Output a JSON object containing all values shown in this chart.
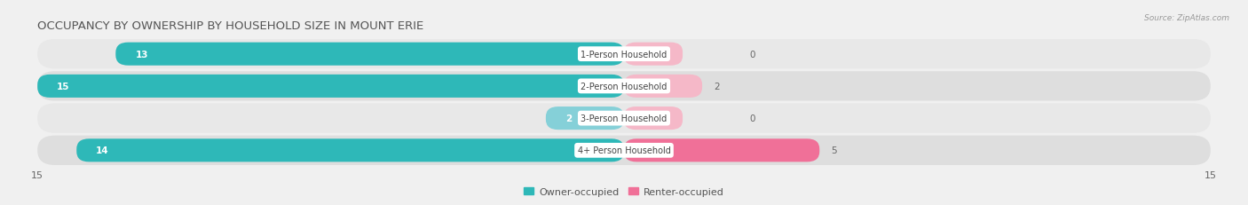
{
  "title": "OCCUPANCY BY OWNERSHIP BY HOUSEHOLD SIZE IN MOUNT ERIE",
  "source": "Source: ZipAtlas.com",
  "categories": [
    "1-Person Household",
    "2-Person Household",
    "3-Person Household",
    "4+ Person Household"
  ],
  "owner_values": [
    13,
    15,
    2,
    14
  ],
  "renter_values": [
    0,
    2,
    0,
    5
  ],
  "xlim": [
    -15,
    15
  ],
  "owner_color": "#2eb8b8",
  "owner_color_light": "#85d0d8",
  "renter_color": "#f07098",
  "renter_color_light": "#f5b8c8",
  "bar_height": 0.72,
  "row_color_odd": "#e8e8e8",
  "row_color_even": "#dedede",
  "label_bg": "#ffffff",
  "title_fontsize": 9.5,
  "tick_fontsize": 8,
  "legend_fontsize": 8,
  "value_fontsize": 7.5,
  "cat_label_fontsize": 7
}
